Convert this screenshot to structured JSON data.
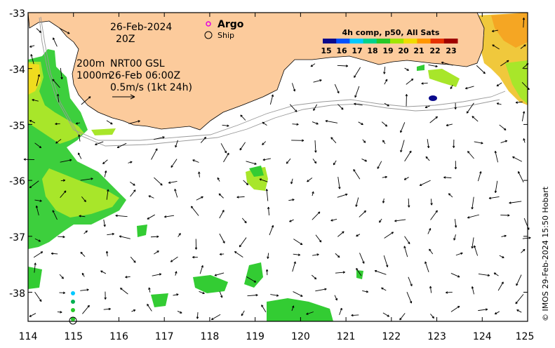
{
  "header": {
    "date": "26-Feb-2024",
    "time": "20Z",
    "depth_200": "200m",
    "depth_1000": "1000m",
    "product": "NRT00 GSL",
    "product_time": "26-Feb 06:00Z",
    "scale_label": "0.5m/s (1kt 24h)"
  },
  "legend": {
    "argo_label": "Argo",
    "ship_label": "Ship",
    "colorbar_title": "4h comp, p50, All Sats",
    "colorbar_ticks": [
      "15",
      "16",
      "17",
      "18",
      "19",
      "20",
      "21",
      "22",
      "23"
    ],
    "colorbar_colors": [
      "#0a0a8c",
      "#0050ff",
      "#00c8ff",
      "#00d28c",
      "#28c828",
      "#a0e600",
      "#f0dc00",
      "#ff9600",
      "#e63200",
      "#a00000"
    ]
  },
  "axes": {
    "x_ticks": [
      "114",
      "115",
      "116",
      "117",
      "118",
      "119",
      "120",
      "121",
      "122",
      "123",
      "124",
      "125"
    ],
    "y_ticks": [
      "-33",
      "-34",
      "-35",
      "-36",
      "-37",
      "-38"
    ]
  },
  "side_credit": "© IMOS 29-Feb-2024 15:50 Hobart",
  "colors": {
    "land": "#fccb9c",
    "sst_green": "#33cc33",
    "sst_yellowgreen": "#a8e62a",
    "sst_yellow": "#f0dc1e",
    "sst_orange": "#f5a623",
    "arrow": "#000000"
  }
}
